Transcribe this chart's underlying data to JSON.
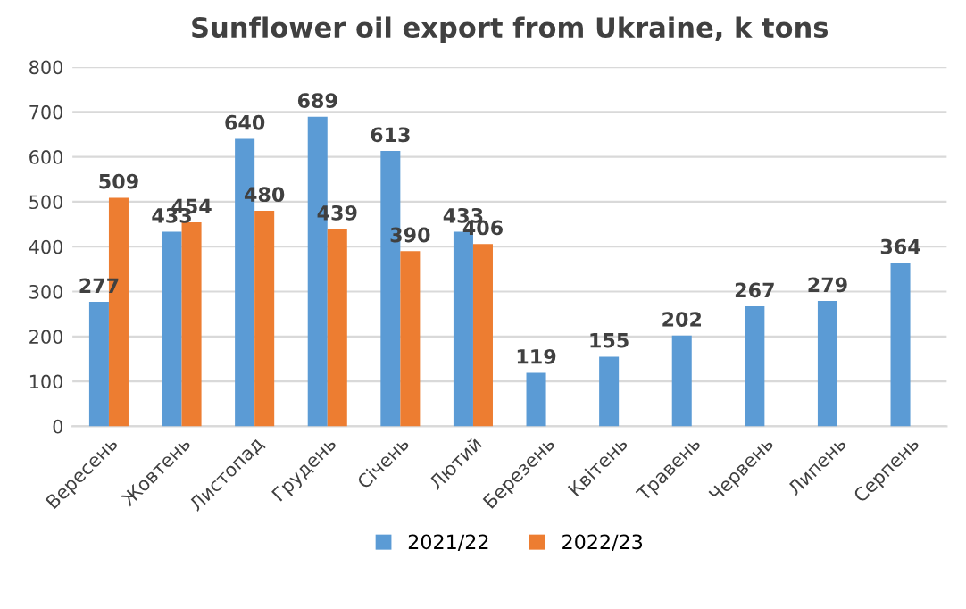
{
  "chart_data": {
    "type": "bar",
    "title": "Sunflower oil export from Ukraine, k tons",
    "categories": [
      "Вересень",
      "Жовтень",
      "Листопад",
      "Грудень",
      "Січень",
      "Лютий",
      "Березень",
      "Квітень",
      "Травень",
      "Червень",
      "Липень",
      "Серпень"
    ],
    "series": [
      {
        "name": "2021/22",
        "color": "#5b9bd5",
        "values": [
          277,
          433,
          640,
          689,
          613,
          433,
          119,
          155,
          202,
          267,
          279,
          364
        ]
      },
      {
        "name": "2022/23",
        "color": "#ed7d31",
        "values": [
          509,
          454,
          480,
          439,
          390,
          406,
          null,
          null,
          null,
          null,
          null,
          null
        ]
      }
    ],
    "ylim": [
      0,
      800
    ],
    "yticks": [
      0,
      100,
      200,
      300,
      400,
      500,
      600,
      700,
      800
    ],
    "grid": "y",
    "legend": "bottom",
    "data_labels": true
  }
}
